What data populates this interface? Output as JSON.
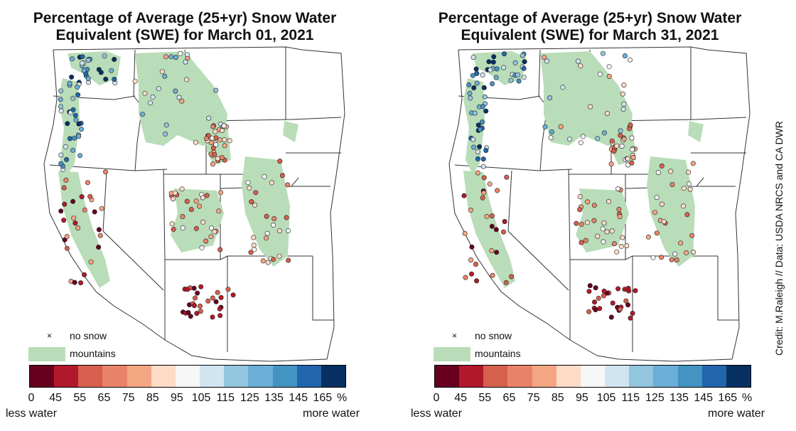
{
  "panels": [
    {
      "title_line1": "Percentage of Average (25+yr) Snow Water",
      "title_line2": "Equivalent (SWE) for March 01, 2021"
    },
    {
      "title_line1": "Percentage of Average (25+yr) Snow Water",
      "title_line2": "Equivalent (SWE) for March 31, 2021"
    }
  ],
  "legend": {
    "no_snow_symbol": "×",
    "no_snow_label": "no snow",
    "mountains_label": "mountains",
    "mountains_color": "#b9dcb9",
    "less_water_label": "less water",
    "more_water_label": "more water",
    "unit": "%"
  },
  "colorbar": {
    "ticks": [
      "0",
      "45",
      "55",
      "65",
      "75",
      "85",
      "95",
      "105",
      "115",
      "125",
      "135",
      "145",
      "165"
    ],
    "colors": [
      "#67001f",
      "#b2182b",
      "#d6604d",
      "#e8836a",
      "#f4a582",
      "#fddbc7",
      "#f7f7f7",
      "#d1e5f0",
      "#92c5de",
      "#6baed6",
      "#4393c3",
      "#2166ac",
      "#053061"
    ]
  },
  "credit": "Credit: M.Raleigh // Data: USDA NRCS and CA DWR"
}
